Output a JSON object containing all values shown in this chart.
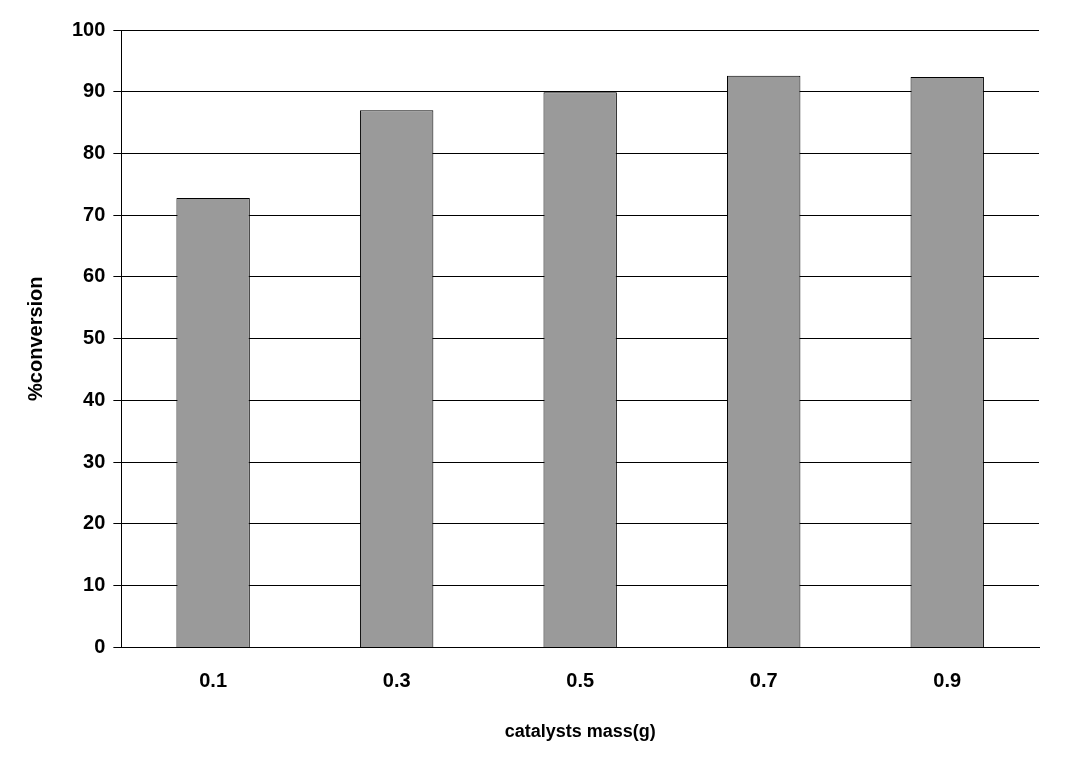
{
  "chart_data": {
    "type": "bar",
    "xlabel": "catalysts mass(g)",
    "ylabel": "%conversion",
    "categories": [
      "0.1",
      "0.3",
      "0.5",
      "0.7",
      "0.9"
    ],
    "values": [
      72.8,
      87.0,
      89.9,
      92.6,
      92.4
    ],
    "color": "#9a9a9a",
    "ylim": [
      0,
      100
    ],
    "yticks": [
      0,
      10,
      20,
      30,
      40,
      50,
      60,
      70,
      80,
      90,
      100
    ],
    "grid": "y",
    "legend": false
  }
}
